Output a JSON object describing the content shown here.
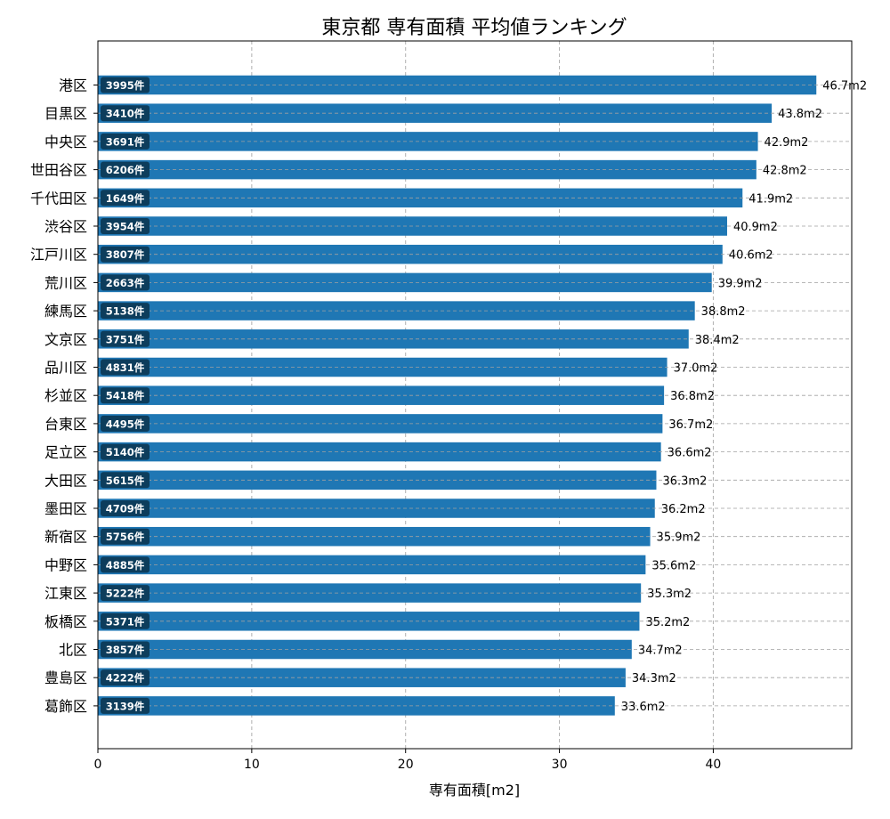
{
  "chart_data": {
    "type": "bar",
    "orientation": "horizontal",
    "title": "東京都 専有面積 平均値ランキング",
    "xlabel": "専有面積[m2]",
    "ylabel": "",
    "xlim": [
      0,
      49
    ],
    "xticks": [
      "0",
      "10",
      "20",
      "30",
      "40"
    ],
    "grid": true,
    "bar_color": "#1f77b4",
    "badge_color": "#0d3d5c",
    "value_suffix": "m2",
    "categories": [
      "港区",
      "目黒区",
      "中央区",
      "世田谷区",
      "千代田区",
      "渋谷区",
      "江戸川区",
      "荒川区",
      "練馬区",
      "文京区",
      "品川区",
      "杉並区",
      "台東区",
      "足立区",
      "大田区",
      "墨田区",
      "新宿区",
      "中野区",
      "江東区",
      "板橋区",
      "北区",
      "豊島区",
      "葛飾区"
    ],
    "values": [
      46.7,
      43.8,
      42.9,
      42.8,
      41.9,
      40.9,
      40.6,
      39.9,
      38.8,
      38.4,
      37.0,
      36.8,
      36.7,
      36.6,
      36.3,
      36.2,
      35.9,
      35.6,
      35.3,
      35.2,
      34.7,
      34.3,
      33.6
    ],
    "value_labels": [
      "46.7m2",
      "43.8m2",
      "42.9m2",
      "42.8m2",
      "41.9m2",
      "40.9m2",
      "40.6m2",
      "39.9m2",
      "38.8m2",
      "38.4m2",
      "37.0m2",
      "36.8m2",
      "36.7m2",
      "36.6m2",
      "36.3m2",
      "36.2m2",
      "35.9m2",
      "35.6m2",
      "35.3m2",
      "35.2m2",
      "34.7m2",
      "34.3m2",
      "33.6m2"
    ],
    "counts": [
      "3995件",
      "3410件",
      "3691件",
      "6206件",
      "1649件",
      "3954件",
      "3807件",
      "2663件",
      "5138件",
      "3751件",
      "4831件",
      "5418件",
      "4495件",
      "5140件",
      "5615件",
      "4709件",
      "5756件",
      "4885件",
      "5222件",
      "5371件",
      "3857件",
      "4222件",
      "3139件"
    ]
  }
}
